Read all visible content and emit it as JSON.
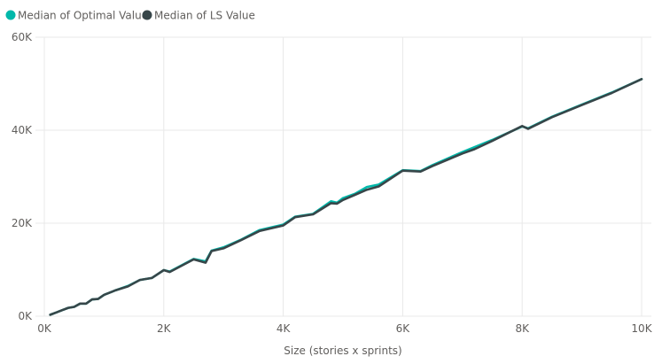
{
  "chart_data": {
    "type": "line",
    "title": "",
    "xlabel": "Size (stories x sprints)",
    "ylabel": "",
    "xlim": [
      0,
      10000
    ],
    "ylim": [
      0,
      60000
    ],
    "x_ticks": [
      {
        "value": 0,
        "label": "0K"
      },
      {
        "value": 2000,
        "label": "2K"
      },
      {
        "value": 4000,
        "label": "4K"
      },
      {
        "value": 6000,
        "label": "6K"
      },
      {
        "value": 8000,
        "label": "8K"
      },
      {
        "value": 10000,
        "label": "10K"
      }
    ],
    "y_ticks": [
      {
        "value": 0,
        "label": "0K"
      },
      {
        "value": 20000,
        "label": "20K"
      },
      {
        "value": 40000,
        "label": "40K"
      },
      {
        "value": 60000,
        "label": "60K"
      }
    ],
    "grid": true,
    "legend_position": "top-left",
    "series": [
      {
        "name": "Median of Optimal Value",
        "color": "#01b8aa",
        "points": [
          [
            100,
            300
          ],
          [
            200,
            800
          ],
          [
            300,
            1300
          ],
          [
            400,
            1800
          ],
          [
            500,
            2000
          ],
          [
            600,
            2700
          ],
          [
            700,
            2700
          ],
          [
            800,
            3600
          ],
          [
            900,
            3700
          ],
          [
            1000,
            4600
          ],
          [
            1200,
            5600
          ],
          [
            1400,
            6500
          ],
          [
            1600,
            7800
          ],
          [
            1800,
            8200
          ],
          [
            2000,
            9900
          ],
          [
            2100,
            9600
          ],
          [
            2500,
            12300
          ],
          [
            2700,
            11800
          ],
          [
            2800,
            14100
          ],
          [
            3000,
            14800
          ],
          [
            3300,
            16500
          ],
          [
            3600,
            18500
          ],
          [
            4000,
            19700
          ],
          [
            4200,
            21400
          ],
          [
            4500,
            22000
          ],
          [
            4800,
            24700
          ],
          [
            4900,
            24400
          ],
          [
            5000,
            25400
          ],
          [
            5200,
            26300
          ],
          [
            5400,
            27800
          ],
          [
            5600,
            28300
          ],
          [
            6000,
            31400
          ],
          [
            6300,
            31200
          ],
          [
            6500,
            32500
          ],
          [
            7000,
            35300
          ],
          [
            7500,
            37900
          ],
          [
            8000,
            40800
          ],
          [
            8100,
            40400
          ],
          [
            8500,
            42900
          ],
          [
            9000,
            45500
          ],
          [
            9500,
            48100
          ],
          [
            10000,
            51000
          ]
        ]
      },
      {
        "name": "Median of LS Value",
        "color": "#374649",
        "points": [
          [
            100,
            300
          ],
          [
            200,
            800
          ],
          [
            300,
            1300
          ],
          [
            400,
            1800
          ],
          [
            500,
            2000
          ],
          [
            600,
            2700
          ],
          [
            700,
            2700
          ],
          [
            800,
            3600
          ],
          [
            900,
            3700
          ],
          [
            1000,
            4600
          ],
          [
            1200,
            5600
          ],
          [
            1400,
            6400
          ],
          [
            1600,
            7800
          ],
          [
            1800,
            8200
          ],
          [
            2000,
            9900
          ],
          [
            2100,
            9500
          ],
          [
            2500,
            12200
          ],
          [
            2700,
            11500
          ],
          [
            2800,
            14000
          ],
          [
            3000,
            14600
          ],
          [
            3300,
            16400
          ],
          [
            3600,
            18300
          ],
          [
            4000,
            19500
          ],
          [
            4200,
            21300
          ],
          [
            4500,
            21900
          ],
          [
            4800,
            24300
          ],
          [
            4900,
            24200
          ],
          [
            5000,
            25000
          ],
          [
            5200,
            26100
          ],
          [
            5400,
            27200
          ],
          [
            5600,
            27900
          ],
          [
            6000,
            31300
          ],
          [
            6300,
            31100
          ],
          [
            6500,
            32300
          ],
          [
            7000,
            35000
          ],
          [
            7200,
            35900
          ],
          [
            7500,
            37700
          ],
          [
            8000,
            40900
          ],
          [
            8100,
            40300
          ],
          [
            8500,
            42800
          ],
          [
            9000,
            45400
          ],
          [
            9500,
            48000
          ],
          [
            10000,
            51000
          ]
        ]
      }
    ]
  }
}
